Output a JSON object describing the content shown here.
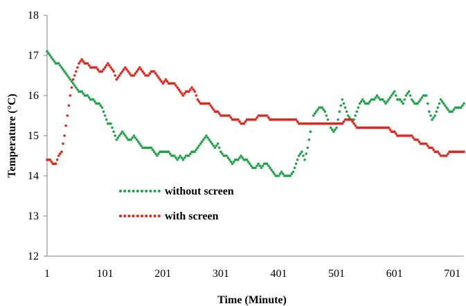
{
  "chart_data": {
    "type": "scatter",
    "title": "",
    "xlabel": "Time (Minute)",
    "ylabel": "Temperature (°C)",
    "xlim": [
      1,
      721
    ],
    "ylim": [
      12,
      18
    ],
    "xticks": [
      1,
      101,
      201,
      301,
      401,
      501,
      601,
      701
    ],
    "yticks": [
      12,
      13,
      14,
      15,
      16,
      17,
      18
    ],
    "grid": false,
    "legend": "inside-lower-left",
    "series": [
      {
        "name": "without screen",
        "color": "#1fa24a",
        "x": [
          1,
          6,
          11,
          16,
          21,
          26,
          31,
          36,
          41,
          46,
          51,
          56,
          61,
          66,
          71,
          76,
          81,
          86,
          91,
          96,
          101,
          106,
          111,
          116,
          121,
          126,
          131,
          136,
          141,
          146,
          151,
          156,
          161,
          166,
          171,
          176,
          181,
          186,
          191,
          196,
          201,
          206,
          211,
          216,
          221,
          226,
          231,
          236,
          241,
          246,
          251,
          256,
          261,
          266,
          271,
          276,
          281,
          286,
          291,
          296,
          301,
          306,
          311,
          316,
          321,
          326,
          331,
          336,
          341,
          346,
          351,
          356,
          361,
          366,
          371,
          376,
          381,
          386,
          391,
          396,
          401,
          406,
          411,
          416,
          421,
          426,
          431,
          436,
          441,
          446,
          451,
          456,
          461,
          466,
          471,
          476,
          481,
          486,
          491,
          496,
          501,
          506,
          511,
          516,
          521,
          526,
          531,
          536,
          541,
          546,
          551,
          556,
          561,
          566,
          571,
          576,
          581,
          586,
          591,
          596,
          601,
          606,
          611,
          616,
          621,
          626,
          631,
          636,
          641,
          646,
          651,
          656,
          661,
          666,
          671,
          676,
          681,
          686,
          691,
          696,
          701,
          706,
          711,
          716,
          721
        ],
        "y": [
          17.1,
          17.0,
          16.9,
          16.8,
          16.8,
          16.7,
          16.6,
          16.5,
          16.4,
          16.3,
          16.2,
          16.1,
          16.1,
          16.0,
          16.0,
          15.9,
          15.9,
          15.8,
          15.8,
          15.7,
          15.5,
          15.3,
          15.3,
          15.1,
          14.9,
          15.0,
          15.1,
          15.0,
          14.9,
          14.9,
          15.0,
          14.9,
          14.8,
          14.7,
          14.7,
          14.7,
          14.7,
          14.6,
          14.5,
          14.6,
          14.6,
          14.6,
          14.6,
          14.5,
          14.5,
          14.4,
          14.5,
          14.4,
          14.5,
          14.5,
          14.6,
          14.6,
          14.7,
          14.8,
          14.9,
          15.0,
          14.9,
          14.8,
          14.7,
          14.8,
          14.6,
          14.5,
          14.5,
          14.4,
          14.3,
          14.4,
          14.4,
          14.5,
          14.4,
          14.4,
          14.3,
          14.2,
          14.2,
          14.3,
          14.2,
          14.3,
          14.3,
          14.2,
          14.1,
          14.0,
          14.0,
          14.1,
          14.0,
          14.0,
          14.0,
          14.1,
          14.3,
          14.5,
          14.6,
          14.4,
          14.7,
          15.1,
          15.5,
          15.6,
          15.7,
          15.7,
          15.6,
          15.4,
          15.2,
          15.1,
          15.2,
          15.6,
          15.9,
          15.7,
          15.5,
          15.4,
          15.4,
          15.6,
          15.8,
          15.9,
          15.8,
          15.8,
          15.9,
          15.9,
          16.0,
          15.9,
          15.9,
          15.8,
          15.9,
          16.0,
          16.1,
          15.9,
          15.9,
          15.8,
          16.0,
          16.1,
          15.9,
          15.8,
          15.8,
          15.9,
          16.0,
          16.0,
          15.6,
          15.4,
          15.5,
          15.7,
          15.9,
          15.8,
          15.7,
          15.6,
          15.6,
          15.7,
          15.7,
          15.7,
          15.8
        ]
      },
      {
        "name": "with screen",
        "color": "#e8231a",
        "x": [
          1,
          6,
          11,
          16,
          21,
          26,
          31,
          36,
          41,
          46,
          51,
          56,
          61,
          66,
          71,
          76,
          81,
          86,
          91,
          96,
          101,
          106,
          111,
          116,
          121,
          126,
          131,
          136,
          141,
          146,
          151,
          156,
          161,
          166,
          171,
          176,
          181,
          186,
          191,
          196,
          201,
          206,
          211,
          216,
          221,
          226,
          231,
          236,
          241,
          246,
          251,
          256,
          261,
          266,
          271,
          276,
          281,
          286,
          291,
          296,
          301,
          306,
          311,
          316,
          321,
          326,
          331,
          336,
          341,
          346,
          351,
          356,
          361,
          366,
          371,
          376,
          381,
          386,
          391,
          396,
          401,
          406,
          411,
          416,
          421,
          426,
          431,
          436,
          441,
          446,
          451,
          456,
          461,
          466,
          471,
          476,
          481,
          486,
          491,
          496,
          501,
          506,
          511,
          516,
          521,
          526,
          531,
          536,
          541,
          546,
          551,
          556,
          561,
          566,
          571,
          576,
          581,
          586,
          591,
          596,
          601,
          606,
          611,
          616,
          621,
          626,
          631,
          636,
          641,
          646,
          651,
          656,
          661,
          666,
          671,
          676,
          681,
          686,
          691,
          696,
          701,
          706,
          711,
          716,
          721
        ],
        "y": [
          14.4,
          14.4,
          14.3,
          14.3,
          14.5,
          14.6,
          15.0,
          15.5,
          16.0,
          16.4,
          16.6,
          16.8,
          16.9,
          16.8,
          16.8,
          16.7,
          16.7,
          16.7,
          16.6,
          16.6,
          16.7,
          16.8,
          16.7,
          16.6,
          16.4,
          16.5,
          16.6,
          16.7,
          16.6,
          16.5,
          16.5,
          16.6,
          16.7,
          16.6,
          16.5,
          16.5,
          16.6,
          16.6,
          16.5,
          16.4,
          16.3,
          16.4,
          16.3,
          16.3,
          16.3,
          16.2,
          16.1,
          16.0,
          16.1,
          16.1,
          16.2,
          16.1,
          15.9,
          15.8,
          15.8,
          15.8,
          15.8,
          15.7,
          15.6,
          15.6,
          15.5,
          15.5,
          15.5,
          15.5,
          15.4,
          15.4,
          15.4,
          15.3,
          15.3,
          15.4,
          15.4,
          15.4,
          15.4,
          15.5,
          15.5,
          15.5,
          15.5,
          15.4,
          15.4,
          15.4,
          15.4,
          15.4,
          15.4,
          15.4,
          15.4,
          15.4,
          15.4,
          15.3,
          15.3,
          15.3,
          15.3,
          15.3,
          15.3,
          15.3,
          15.3,
          15.3,
          15.3,
          15.3,
          15.3,
          15.3,
          15.3,
          15.3,
          15.3,
          15.4,
          15.4,
          15.4,
          15.3,
          15.2,
          15.2,
          15.2,
          15.2,
          15.2,
          15.2,
          15.2,
          15.2,
          15.2,
          15.2,
          15.2,
          15.2,
          15.1,
          15.1,
          15.0,
          15.0,
          15.0,
          15.0,
          15.0,
          15.0,
          14.9,
          14.9,
          14.8,
          14.8,
          14.8,
          14.7,
          14.7,
          14.6,
          14.6,
          14.5,
          14.5,
          14.5,
          14.6,
          14.6,
          14.6,
          14.6,
          14.6,
          14.6
        ]
      }
    ]
  }
}
